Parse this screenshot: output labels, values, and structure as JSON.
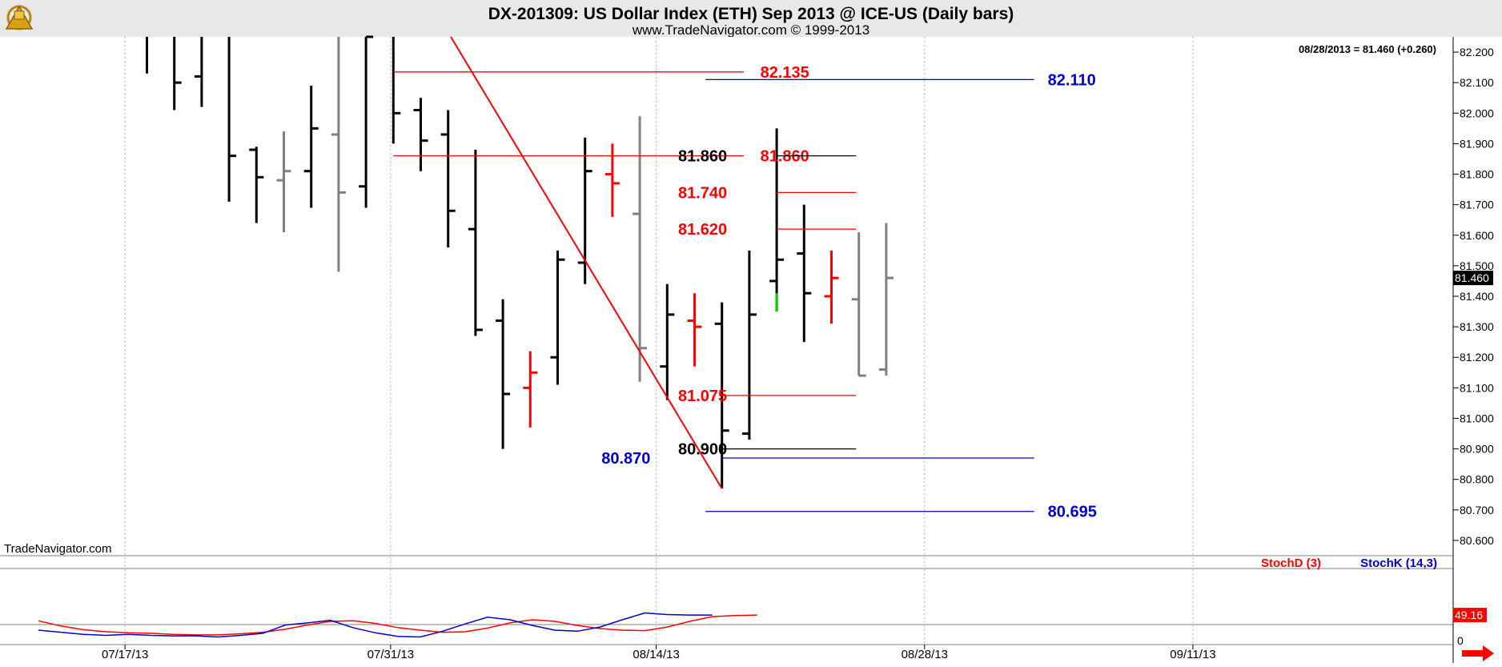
{
  "header": {
    "title": "DX-201309:  US Dollar Index (ETH) Sep 2013 @ ICE-US  (Daily bars)",
    "subtitle": "www.TradeNavigator.com © 1999-2013",
    "last_readout": "08/28/2013 = 81.460 (+0.260)",
    "watermark": "TradeNavigator.com",
    "logo_icon": "sextant-logo-icon"
  },
  "colors": {
    "background": "#ffffff",
    "header_bg": "#e8e8e8",
    "bar_up": "#000000",
    "bar_neutral": "#808080",
    "bar_down": "#ff0000",
    "bar_green": "#00cc00",
    "level_red": "#ff0000",
    "level_blue": "#0000cc",
    "level_black": "#000000",
    "trendline": "#ff0000",
    "stoch_d": "#ff0000",
    "stoch_k": "#0000ff",
    "grid": "#b0b0b0",
    "price_tag_bg": "#000000",
    "stoch_tag_bg": "#ff0000"
  },
  "chart_data": [
    {
      "type": "ohlc",
      "ylim": [
        80.55,
        82.25
      ],
      "y_ticks": [
        "82.200",
        "82.100",
        "82.000",
        "81.900",
        "81.800",
        "81.700",
        "81.600",
        "81.500",
        "81.400",
        "81.300",
        "81.200",
        "81.100",
        "81.000",
        "80.900",
        "80.800",
        "80.700",
        "80.600"
      ],
      "last_price_tag": "81.460",
      "bars": [
        {
          "i": 0,
          "h": 82.3,
          "l": 82.13,
          "o": null,
          "c": null,
          "color": "black"
        },
        {
          "i": 1,
          "h": 82.3,
          "l": 82.01,
          "o": null,
          "c": 82.1,
          "color": "black"
        },
        {
          "i": 2,
          "h": 82.3,
          "l": 82.02,
          "o": 82.12,
          "c": null,
          "color": "black"
        },
        {
          "i": 3,
          "h": 82.3,
          "l": 81.71,
          "o": null,
          "c": 81.86,
          "color": "black"
        },
        {
          "i": 4,
          "h": 81.89,
          "l": 81.64,
          "o": 81.88,
          "c": 81.79,
          "color": "black"
        },
        {
          "i": 5,
          "h": 81.94,
          "l": 81.61,
          "o": 81.78,
          "c": 81.81,
          "color": "gray"
        },
        {
          "i": 6,
          "h": 82.09,
          "l": 81.69,
          "o": 81.81,
          "c": 81.95,
          "color": "black"
        },
        {
          "i": 7,
          "h": 82.3,
          "l": 81.48,
          "o": 81.93,
          "c": 81.74,
          "color": "gray"
        },
        {
          "i": 8,
          "h": 82.3,
          "l": 81.69,
          "o": 81.76,
          "c": 82.3,
          "color": "black"
        },
        {
          "i": 9,
          "h": 82.3,
          "l": 81.9,
          "o": null,
          "c": 82.0,
          "color": "black"
        },
        {
          "i": 10,
          "h": 82.05,
          "l": 81.81,
          "o": 82.01,
          "c": 81.91,
          "color": "black"
        },
        {
          "i": 11,
          "h": 82.01,
          "l": 81.56,
          "o": 81.93,
          "c": 81.68,
          "color": "black"
        },
        {
          "i": 12,
          "h": 81.88,
          "l": 81.27,
          "o": 81.62,
          "c": 81.29,
          "color": "black"
        },
        {
          "i": 13,
          "h": 81.39,
          "l": 80.9,
          "o": 81.32,
          "c": 81.08,
          "color": "black"
        },
        {
          "i": 14,
          "h": 81.22,
          "l": 80.97,
          "o": 81.1,
          "c": 81.15,
          "color": "red"
        },
        {
          "i": 15,
          "h": 81.55,
          "l": 81.11,
          "o": 81.2,
          "c": 81.52,
          "color": "black"
        },
        {
          "i": 16,
          "h": 81.92,
          "l": 81.44,
          "o": 81.51,
          "c": 81.81,
          "color": "black"
        },
        {
          "i": 17,
          "h": 81.9,
          "l": 81.66,
          "o": 81.8,
          "c": 81.77,
          "color": "red"
        },
        {
          "i": 18,
          "h": 81.99,
          "l": 81.12,
          "o": 81.67,
          "c": 81.23,
          "color": "gray"
        },
        {
          "i": 19,
          "h": 81.44,
          "l": 81.06,
          "o": 81.17,
          "c": 81.34,
          "color": "black"
        },
        {
          "i": 20,
          "h": 81.41,
          "l": 81.17,
          "o": 81.32,
          "c": 81.3,
          "color": "red"
        },
        {
          "i": 21,
          "h": 81.38,
          "l": 80.77,
          "o": 81.31,
          "c": 80.96,
          "color": "black"
        },
        {
          "i": 22,
          "h": 81.55,
          "l": 80.93,
          "o": 80.95,
          "c": 81.34,
          "color": "black"
        },
        {
          "i": 23,
          "h": 81.95,
          "l": 81.35,
          "o": 81.45,
          "c": 81.52,
          "color": "black"
        },
        {
          "i": 24,
          "h": 81.7,
          "l": 81.25,
          "o": 81.54,
          "c": 81.41,
          "color": "black"
        },
        {
          "i": 25,
          "h": 81.55,
          "l": 81.31,
          "o": 81.4,
          "c": 81.46,
          "color": "red"
        },
        {
          "i": 26,
          "h": 81.61,
          "l": 81.14,
          "o": 81.39,
          "c": 81.14,
          "color": "gray"
        },
        {
          "i": 27,
          "h": 81.64,
          "l": 81.14,
          "o": 81.16,
          "c": 81.46,
          "color": "gray"
        }
      ],
      "green_tick": {
        "i": 23,
        "from": 81.41,
        "to": 81.35
      },
      "levels": [
        {
          "label": "82.135",
          "value": 82.135,
          "color": "red",
          "from": 9,
          "to": 21.8,
          "label_at": 22.4
        },
        {
          "label": "82.110",
          "value": 82.11,
          "color": "blue",
          "from": 20.4,
          "to": 32.4,
          "label_at": 32.9
        },
        {
          "label": "81.860",
          "value": 81.86,
          "color": "red",
          "from": 9,
          "to": 21.8,
          "label_at": 22.4
        },
        {
          "label": "81.860",
          "value": 81.86,
          "color": "black",
          "from": 23,
          "to": 25.9,
          "label_at": 19.4
        },
        {
          "label": "81.740",
          "value": 81.74,
          "color": "red",
          "from": 23,
          "to": 25.9,
          "label_at": 19.4
        },
        {
          "label": "81.620",
          "value": 81.62,
          "color": "red",
          "from": 23,
          "to": 25.9,
          "label_at": 19.4
        },
        {
          "label": "81.075",
          "value": 81.075,
          "color": "red",
          "from": 21,
          "to": 25.9,
          "label_at": 19.4
        },
        {
          "label": "80.900",
          "value": 80.9,
          "color": "black",
          "from": 21,
          "to": 25.9,
          "label_at": 19.4
        },
        {
          "label": "80.870",
          "value": 80.87,
          "color": "blue",
          "from": 21,
          "to": 32.4,
          "label_at": 16.6
        },
        {
          "label": "80.695",
          "value": 80.695,
          "color": "blue",
          "from": 20.4,
          "to": 32.4,
          "label_at": 32.9
        }
      ],
      "trendline": {
        "from": {
          "i": 11.1,
          "v": 82.25
        },
        "to": {
          "i": 21.0,
          "v": 80.77
        }
      }
    },
    {
      "type": "line",
      "name_labels": [
        "StochD (3)",
        "StochK (14,3)"
      ],
      "ylim": [
        0,
        100
      ],
      "y_ticks": [
        "0"
      ],
      "last_value_tag": "49.16",
      "series": [
        {
          "name": "StochD (3)",
          "color": "red",
          "values": [
            38,
            28,
            21,
            17,
            15,
            14,
            12,
            11,
            11,
            13,
            16,
            22,
            30,
            37,
            38,
            33,
            25,
            20,
            16,
            17,
            24,
            34,
            40,
            37,
            29,
            23,
            20,
            19,
            26,
            37,
            46,
            48,
            49
          ]
        },
        {
          "name": "StochK (14,3)",
          "color": "blue",
          "values": [
            20,
            16,
            12,
            10,
            12,
            10,
            9,
            9,
            7,
            10,
            14,
            30,
            34,
            39,
            25,
            15,
            8,
            7,
            18,
            32,
            45,
            40,
            29,
            20,
            18,
            26,
            40,
            53,
            50,
            49,
            49
          ]
        }
      ]
    }
  ],
  "x_axis": {
    "labels": [
      {
        "text": "07/17/13",
        "i": -0.8
      },
      {
        "text": "07/31/13",
        "i": 8.9
      },
      {
        "text": "08/14/13",
        "i": 18.6
      },
      {
        "text": "08/28/13",
        "i": 28.4
      },
      {
        "text": "09/11/13",
        "i": 38.2
      }
    ]
  },
  "scroll_arrow_icon": "right-arrow-icon"
}
